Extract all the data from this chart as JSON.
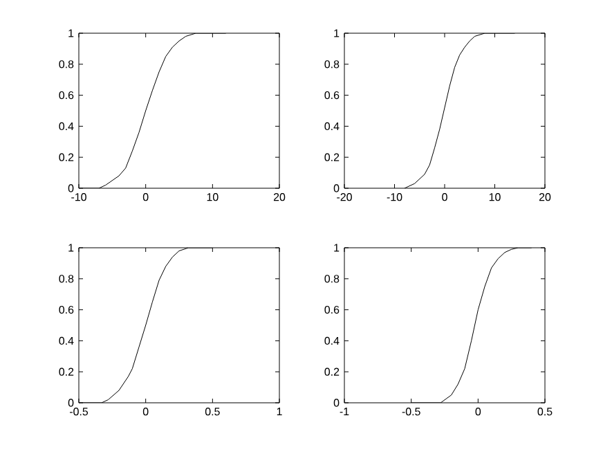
{
  "chart_data": [
    {
      "type": "line",
      "xlim": [
        -10,
        20
      ],
      "ylim": [
        0,
        1
      ],
      "xticks": [
        -10,
        0,
        10,
        20
      ],
      "yticks": [
        0,
        0.2,
        0.4,
        0.6,
        0.8,
        1
      ],
      "series": [
        {
          "color": "#000000",
          "x": [
            -10,
            -7,
            -6,
            -4,
            -3,
            -2,
            -1,
            0,
            1,
            2,
            3,
            4,
            5,
            6,
            7.5,
            12
          ],
          "values": [
            0,
            0,
            0.02,
            0.08,
            0.13,
            0.24,
            0.36,
            0.5,
            0.63,
            0.75,
            0.85,
            0.91,
            0.95,
            0.98,
            1,
            1
          ]
        }
      ]
    },
    {
      "type": "line",
      "xlim": [
        -20,
        20
      ],
      "ylim": [
        0,
        1
      ],
      "xticks": [
        -20,
        -10,
        0,
        10,
        20
      ],
      "yticks": [
        0,
        0.2,
        0.4,
        0.6,
        0.8,
        1
      ],
      "series": [
        {
          "color": "#000000",
          "x": [
            -8,
            -6,
            -4,
            -3,
            -2,
            -1,
            0,
            1,
            2,
            3,
            4,
            5,
            6,
            8,
            14
          ],
          "values": [
            0,
            0.03,
            0.09,
            0.15,
            0.26,
            0.38,
            0.52,
            0.66,
            0.78,
            0.86,
            0.91,
            0.95,
            0.98,
            1,
            1
          ]
        }
      ]
    },
    {
      "type": "line",
      "xlim": [
        -0.5,
        1
      ],
      "ylim": [
        0,
        1
      ],
      "xticks": [
        -0.5,
        0,
        0.5,
        1
      ],
      "yticks": [
        0,
        0.2,
        0.4,
        0.6,
        0.8,
        1
      ],
      "series": [
        {
          "color": "#000000",
          "x": [
            -0.5,
            -0.33,
            -0.28,
            -0.2,
            -0.13,
            -0.1,
            -0.05,
            0,
            0.05,
            0.1,
            0.15,
            0.2,
            0.25,
            0.32,
            0.5
          ],
          "values": [
            0,
            0,
            0.02,
            0.08,
            0.17,
            0.22,
            0.36,
            0.5,
            0.65,
            0.79,
            0.88,
            0.94,
            0.98,
            1,
            1
          ]
        }
      ]
    },
    {
      "type": "line",
      "xlim": [
        -1,
        0.5
      ],
      "ylim": [
        0,
        1
      ],
      "xticks": [
        -1,
        -0.5,
        0,
        0.5
      ],
      "yticks": [
        0,
        0.2,
        0.4,
        0.6,
        0.8,
        1
      ],
      "series": [
        {
          "color": "#000000",
          "x": [
            -0.5,
            -0.28,
            -0.2,
            -0.15,
            -0.1,
            -0.05,
            0,
            0.05,
            0.1,
            0.15,
            0.2,
            0.25,
            0.3,
            0.4
          ],
          "values": [
            0,
            0,
            0.05,
            0.12,
            0.22,
            0.4,
            0.6,
            0.75,
            0.87,
            0.93,
            0.97,
            0.99,
            1,
            1
          ]
        }
      ]
    }
  ]
}
